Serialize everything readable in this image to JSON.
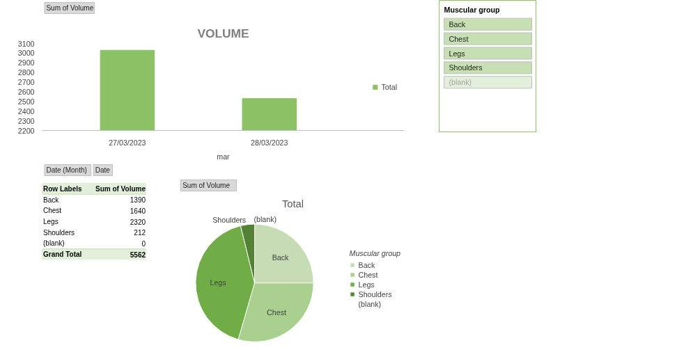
{
  "chart_data": [
    {
      "type": "bar",
      "title": "VOLUME",
      "categories": [
        "27/03/2023",
        "28/03/2023"
      ],
      "xlabel": "mar",
      "series": [
        {
          "name": "Total",
          "color": "#8cc264",
          "values": [
            3030,
            2530
          ]
        }
      ],
      "ylim": [
        2200,
        3100
      ],
      "yticks": [
        2200,
        2300,
        2400,
        2500,
        2600,
        2700,
        2800,
        2900,
        3000,
        3100
      ],
      "grid": false,
      "legend": "right",
      "annotations": [
        "Sum of Volume",
        "Date (Month)",
        "Date"
      ]
    },
    {
      "type": "other",
      "title": "Muscular group",
      "annotations": [
        "Back",
        "Chest",
        "Legs",
        "Shoulders",
        "(blank)"
      ]
    },
    {
      "type": "other",
      "annotations": [
        "Row Labels",
        "Sum of Volume",
        "Back",
        "1390",
        "Chest",
        "1640",
        "Legs",
        "2320",
        "Shoulders",
        "212",
        "(blank)",
        "0",
        "Grand Total",
        "5562"
      ]
    },
    {
      "type": "pie",
      "title": "Total",
      "legend_title": "Muscular group",
      "legend": "right",
      "categories": [
        "Back",
        "Chest",
        "Legs",
        "Shoulders",
        "(blank)"
      ],
      "values": [
        24.99,
        29.49,
        41.71,
        3.81,
        0
      ],
      "colors": [
        "#c5dcb5",
        "#a9d08e",
        "#70ad47",
        "#548235",
        "#375623"
      ],
      "annotations": [
        "Sum of Volume"
      ]
    }
  ]
}
